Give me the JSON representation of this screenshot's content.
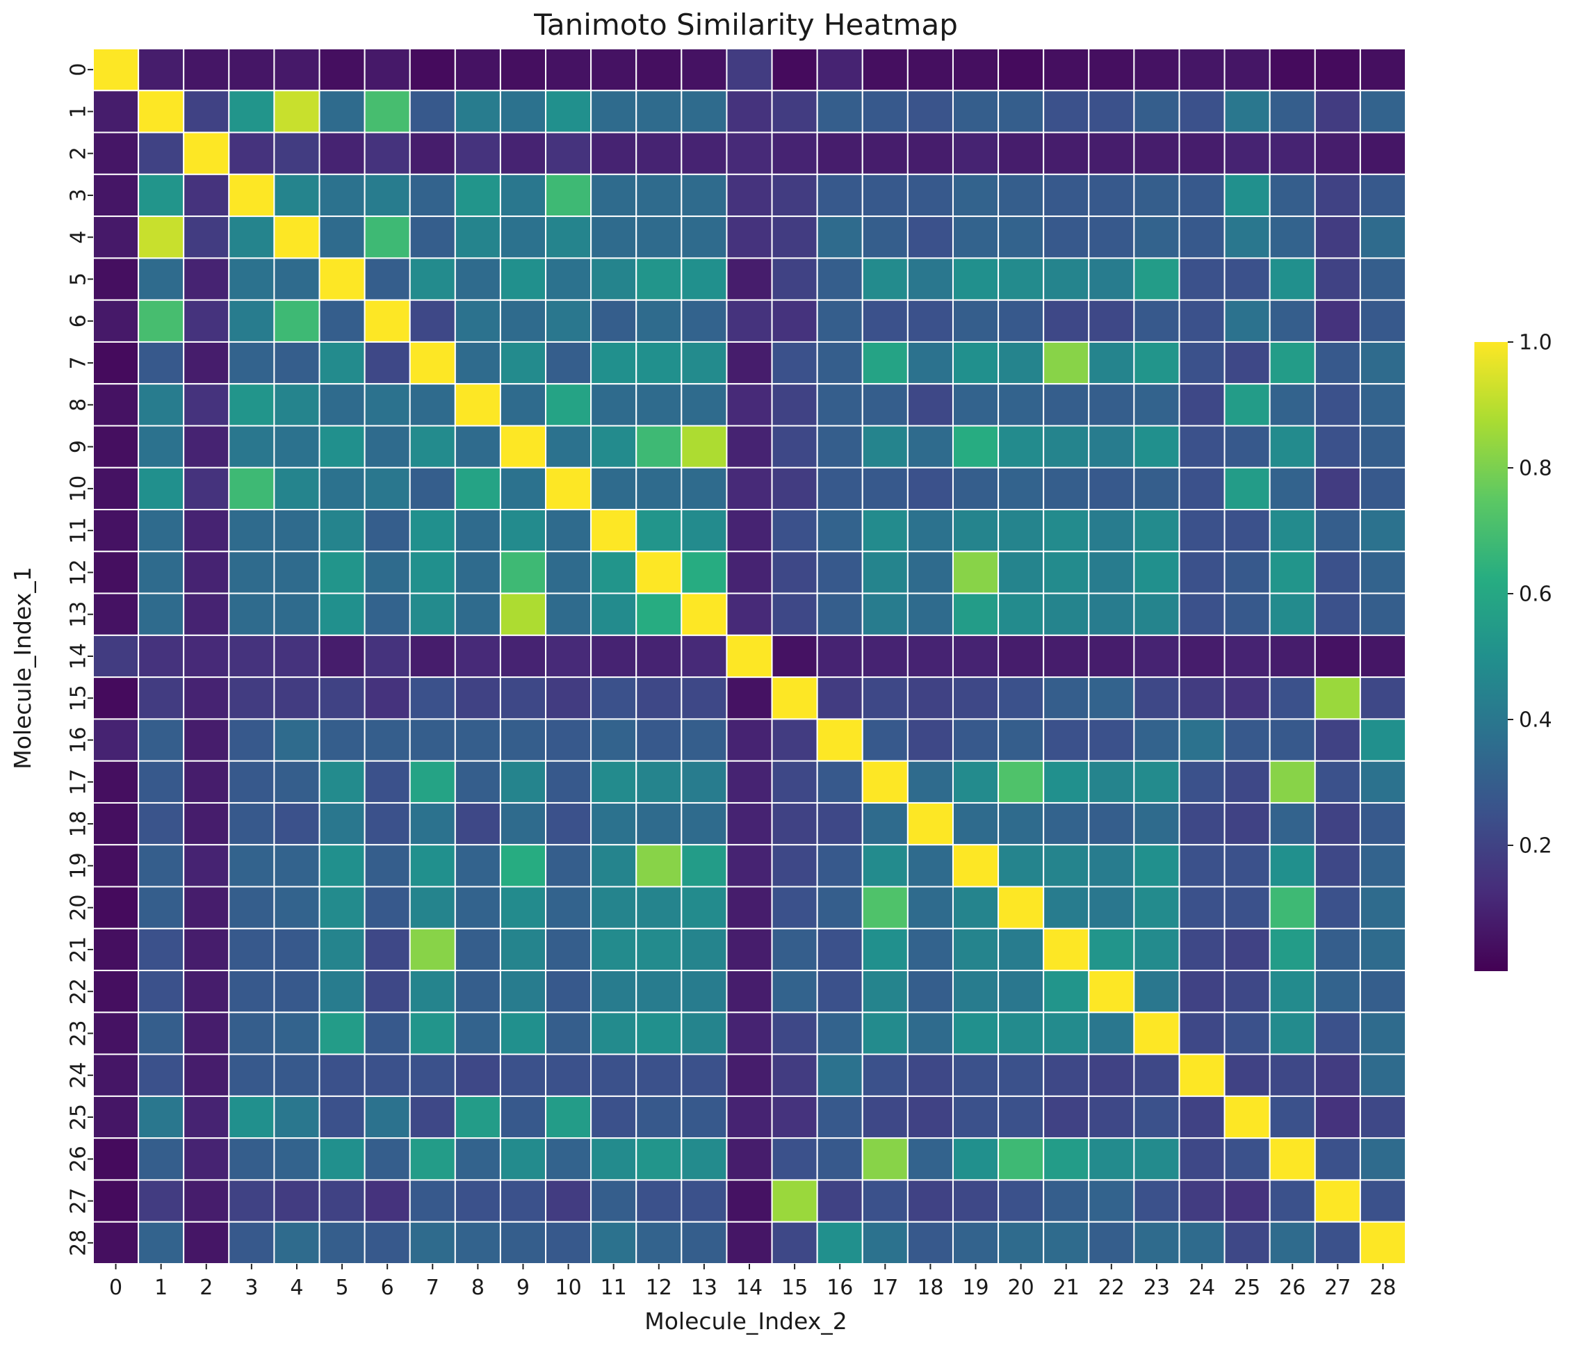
{
  "chart_data": {
    "type": "heatmap",
    "title": "Tanimoto Similarity Heatmap",
    "xlabel": "Molecule_Index_2",
    "ylabel": "Molecule_Index_1",
    "x_categories": [
      "0",
      "1",
      "2",
      "3",
      "4",
      "5",
      "6",
      "7",
      "8",
      "9",
      "10",
      "11",
      "12",
      "13",
      "14",
      "15",
      "16",
      "17",
      "18",
      "19",
      "20",
      "21",
      "22",
      "23",
      "24",
      "25",
      "26",
      "27",
      "28"
    ],
    "y_categories": [
      "0",
      "1",
      "2",
      "3",
      "4",
      "5",
      "6",
      "7",
      "8",
      "9",
      "10",
      "11",
      "12",
      "13",
      "14",
      "15",
      "16",
      "17",
      "18",
      "19",
      "20",
      "21",
      "22",
      "23",
      "24",
      "25",
      "26",
      "27",
      "28"
    ],
    "colormap": "viridis",
    "colorbar": {
      "range": [
        0.0,
        1.0
      ],
      "ticks": [
        "0.2",
        "0.4",
        "0.6",
        "0.8",
        "1.0"
      ],
      "tick_values": [
        0.2,
        0.4,
        0.6,
        0.8,
        1.0
      ]
    },
    "grid_line_color": "#ffffff",
    "values": [
      [
        1.0,
        0.08,
        0.06,
        0.06,
        0.07,
        0.04,
        0.07,
        0.03,
        0.05,
        0.04,
        0.05,
        0.05,
        0.04,
        0.05,
        0.18,
        0.03,
        0.1,
        0.04,
        0.04,
        0.04,
        0.03,
        0.04,
        0.04,
        0.05,
        0.06,
        0.06,
        0.03,
        0.03,
        0.04
      ],
      [
        0.08,
        1.0,
        0.2,
        0.52,
        0.92,
        0.35,
        0.7,
        0.28,
        0.42,
        0.38,
        0.5,
        0.35,
        0.35,
        0.35,
        0.15,
        0.18,
        0.3,
        0.28,
        0.26,
        0.3,
        0.3,
        0.25,
        0.25,
        0.3,
        0.25,
        0.4,
        0.3,
        0.18,
        0.32
      ],
      [
        0.06,
        0.2,
        1.0,
        0.15,
        0.18,
        0.1,
        0.15,
        0.08,
        0.15,
        0.1,
        0.15,
        0.1,
        0.1,
        0.1,
        0.12,
        0.1,
        0.08,
        0.08,
        0.08,
        0.1,
        0.08,
        0.08,
        0.08,
        0.08,
        0.08,
        0.1,
        0.1,
        0.08,
        0.06
      ],
      [
        0.06,
        0.52,
        0.15,
        1.0,
        0.45,
        0.38,
        0.42,
        0.32,
        0.52,
        0.4,
        0.68,
        0.35,
        0.35,
        0.35,
        0.15,
        0.18,
        0.28,
        0.28,
        0.28,
        0.32,
        0.3,
        0.28,
        0.28,
        0.3,
        0.28,
        0.5,
        0.3,
        0.2,
        0.28
      ],
      [
        0.07,
        0.92,
        0.18,
        0.45,
        1.0,
        0.35,
        0.68,
        0.3,
        0.45,
        0.38,
        0.45,
        0.35,
        0.35,
        0.35,
        0.15,
        0.18,
        0.35,
        0.3,
        0.25,
        0.32,
        0.32,
        0.28,
        0.28,
        0.32,
        0.28,
        0.4,
        0.32,
        0.18,
        0.35
      ],
      [
        0.04,
        0.35,
        0.1,
        0.38,
        0.35,
        1.0,
        0.3,
        0.48,
        0.35,
        0.5,
        0.38,
        0.45,
        0.52,
        0.5,
        0.08,
        0.2,
        0.3,
        0.48,
        0.4,
        0.5,
        0.48,
        0.45,
        0.42,
        0.55,
        0.25,
        0.25,
        0.5,
        0.2,
        0.3
      ],
      [
        0.07,
        0.7,
        0.15,
        0.42,
        0.68,
        0.3,
        1.0,
        0.22,
        0.38,
        0.35,
        0.4,
        0.3,
        0.35,
        0.32,
        0.15,
        0.15,
        0.3,
        0.25,
        0.25,
        0.3,
        0.28,
        0.22,
        0.22,
        0.28,
        0.25,
        0.38,
        0.3,
        0.15,
        0.28
      ],
      [
        0.03,
        0.28,
        0.08,
        0.32,
        0.3,
        0.48,
        0.22,
        1.0,
        0.35,
        0.48,
        0.3,
        0.5,
        0.5,
        0.48,
        0.08,
        0.25,
        0.3,
        0.58,
        0.38,
        0.5,
        0.45,
        0.82,
        0.45,
        0.52,
        0.25,
        0.22,
        0.55,
        0.28,
        0.35
      ],
      [
        0.05,
        0.42,
        0.15,
        0.52,
        0.45,
        0.35,
        0.38,
        0.35,
        1.0,
        0.35,
        0.58,
        0.35,
        0.35,
        0.35,
        0.12,
        0.2,
        0.3,
        0.3,
        0.22,
        0.32,
        0.32,
        0.3,
        0.3,
        0.32,
        0.22,
        0.55,
        0.32,
        0.25,
        0.32
      ],
      [
        0.04,
        0.38,
        0.1,
        0.4,
        0.38,
        0.5,
        0.35,
        0.48,
        0.35,
        1.0,
        0.38,
        0.48,
        0.68,
        0.88,
        0.1,
        0.22,
        0.3,
        0.45,
        0.35,
        0.62,
        0.48,
        0.45,
        0.42,
        0.5,
        0.25,
        0.28,
        0.48,
        0.25,
        0.3
      ],
      [
        0.05,
        0.5,
        0.15,
        0.68,
        0.45,
        0.38,
        0.4,
        0.3,
        0.58,
        0.38,
        1.0,
        0.35,
        0.35,
        0.35,
        0.12,
        0.18,
        0.28,
        0.28,
        0.25,
        0.3,
        0.32,
        0.3,
        0.28,
        0.3,
        0.25,
        0.55,
        0.32,
        0.18,
        0.28
      ],
      [
        0.05,
        0.35,
        0.1,
        0.35,
        0.35,
        0.45,
        0.3,
        0.5,
        0.35,
        0.48,
        0.35,
        1.0,
        0.52,
        0.48,
        0.1,
        0.25,
        0.32,
        0.48,
        0.38,
        0.45,
        0.45,
        0.48,
        0.42,
        0.48,
        0.25,
        0.25,
        0.48,
        0.3,
        0.38
      ],
      [
        0.04,
        0.35,
        0.1,
        0.35,
        0.35,
        0.52,
        0.35,
        0.5,
        0.35,
        0.68,
        0.35,
        0.52,
        1.0,
        0.62,
        0.1,
        0.22,
        0.28,
        0.45,
        0.35,
        0.82,
        0.45,
        0.48,
        0.42,
        0.5,
        0.25,
        0.28,
        0.52,
        0.25,
        0.32
      ],
      [
        0.05,
        0.35,
        0.1,
        0.35,
        0.35,
        0.5,
        0.32,
        0.48,
        0.35,
        0.88,
        0.35,
        0.48,
        0.62,
        1.0,
        0.12,
        0.22,
        0.3,
        0.42,
        0.35,
        0.55,
        0.48,
        0.45,
        0.42,
        0.45,
        0.25,
        0.28,
        0.48,
        0.25,
        0.3
      ],
      [
        0.18,
        0.15,
        0.12,
        0.15,
        0.15,
        0.08,
        0.15,
        0.08,
        0.12,
        0.1,
        0.12,
        0.1,
        0.1,
        0.12,
        1.0,
        0.05,
        0.1,
        0.1,
        0.1,
        0.1,
        0.08,
        0.08,
        0.08,
        0.1,
        0.08,
        0.1,
        0.08,
        0.05,
        0.06
      ],
      [
        0.03,
        0.18,
        0.1,
        0.18,
        0.18,
        0.2,
        0.15,
        0.25,
        0.2,
        0.22,
        0.18,
        0.25,
        0.22,
        0.22,
        0.05,
        1.0,
        0.18,
        0.22,
        0.2,
        0.22,
        0.25,
        0.3,
        0.32,
        0.22,
        0.18,
        0.15,
        0.25,
        0.85,
        0.22
      ],
      [
        0.1,
        0.3,
        0.08,
        0.28,
        0.35,
        0.3,
        0.3,
        0.3,
        0.3,
        0.3,
        0.28,
        0.32,
        0.28,
        0.3,
        0.1,
        0.18,
        1.0,
        0.28,
        0.22,
        0.28,
        0.3,
        0.25,
        0.25,
        0.32,
        0.38,
        0.28,
        0.28,
        0.2,
        0.5
      ],
      [
        0.04,
        0.28,
        0.08,
        0.28,
        0.3,
        0.48,
        0.25,
        0.58,
        0.3,
        0.45,
        0.28,
        0.48,
        0.45,
        0.42,
        0.1,
        0.22,
        0.28,
        1.0,
        0.35,
        0.48,
        0.72,
        0.5,
        0.45,
        0.48,
        0.25,
        0.22,
        0.82,
        0.25,
        0.38
      ],
      [
        0.04,
        0.26,
        0.08,
        0.28,
        0.25,
        0.4,
        0.25,
        0.38,
        0.22,
        0.35,
        0.25,
        0.38,
        0.35,
        0.35,
        0.1,
        0.2,
        0.22,
        0.35,
        1.0,
        0.35,
        0.35,
        0.32,
        0.3,
        0.35,
        0.22,
        0.2,
        0.32,
        0.2,
        0.28
      ],
      [
        0.04,
        0.3,
        0.1,
        0.32,
        0.32,
        0.5,
        0.3,
        0.5,
        0.32,
        0.62,
        0.3,
        0.45,
        0.82,
        0.55,
        0.1,
        0.22,
        0.28,
        0.48,
        0.35,
        1.0,
        0.45,
        0.45,
        0.42,
        0.5,
        0.25,
        0.25,
        0.5,
        0.22,
        0.32
      ],
      [
        0.03,
        0.3,
        0.08,
        0.3,
        0.32,
        0.48,
        0.28,
        0.45,
        0.32,
        0.48,
        0.32,
        0.45,
        0.45,
        0.48,
        0.08,
        0.25,
        0.3,
        0.72,
        0.35,
        0.45,
        1.0,
        0.42,
        0.4,
        0.48,
        0.25,
        0.25,
        0.68,
        0.25,
        0.35
      ],
      [
        0.04,
        0.25,
        0.08,
        0.28,
        0.28,
        0.45,
        0.22,
        0.82,
        0.3,
        0.45,
        0.3,
        0.48,
        0.48,
        0.45,
        0.08,
        0.3,
        0.25,
        0.5,
        0.32,
        0.45,
        0.42,
        1.0,
        0.52,
        0.48,
        0.22,
        0.2,
        0.55,
        0.3,
        0.35
      ],
      [
        0.04,
        0.25,
        0.08,
        0.28,
        0.28,
        0.42,
        0.22,
        0.45,
        0.3,
        0.42,
        0.28,
        0.42,
        0.42,
        0.42,
        0.08,
        0.32,
        0.25,
        0.45,
        0.3,
        0.42,
        0.4,
        0.52,
        1.0,
        0.4,
        0.2,
        0.22,
        0.48,
        0.32,
        0.3
      ],
      [
        0.05,
        0.3,
        0.08,
        0.3,
        0.32,
        0.55,
        0.28,
        0.52,
        0.32,
        0.5,
        0.3,
        0.48,
        0.5,
        0.45,
        0.1,
        0.22,
        0.32,
        0.48,
        0.35,
        0.5,
        0.48,
        0.48,
        0.4,
        1.0,
        0.22,
        0.25,
        0.48,
        0.25,
        0.35
      ],
      [
        0.06,
        0.25,
        0.08,
        0.28,
        0.28,
        0.25,
        0.25,
        0.25,
        0.22,
        0.25,
        0.25,
        0.25,
        0.25,
        0.25,
        0.08,
        0.18,
        0.38,
        0.25,
        0.22,
        0.25,
        0.25,
        0.22,
        0.2,
        0.22,
        1.0,
        0.2,
        0.22,
        0.18,
        0.35
      ],
      [
        0.06,
        0.4,
        0.1,
        0.5,
        0.4,
        0.25,
        0.38,
        0.22,
        0.55,
        0.28,
        0.55,
        0.25,
        0.28,
        0.28,
        0.1,
        0.15,
        0.28,
        0.22,
        0.2,
        0.25,
        0.25,
        0.2,
        0.22,
        0.25,
        0.2,
        1.0,
        0.25,
        0.15,
        0.22
      ],
      [
        0.03,
        0.3,
        0.1,
        0.3,
        0.32,
        0.5,
        0.3,
        0.55,
        0.32,
        0.48,
        0.32,
        0.48,
        0.52,
        0.48,
        0.08,
        0.25,
        0.28,
        0.82,
        0.32,
        0.5,
        0.68,
        0.55,
        0.48,
        0.48,
        0.22,
        0.25,
        1.0,
        0.25,
        0.35
      ],
      [
        0.03,
        0.18,
        0.08,
        0.2,
        0.18,
        0.2,
        0.15,
        0.28,
        0.25,
        0.25,
        0.18,
        0.3,
        0.25,
        0.25,
        0.05,
        0.85,
        0.2,
        0.25,
        0.2,
        0.22,
        0.25,
        0.3,
        0.32,
        0.25,
        0.18,
        0.15,
        0.25,
        1.0,
        0.25
      ],
      [
        0.04,
        0.32,
        0.06,
        0.28,
        0.35,
        0.3,
        0.28,
        0.35,
        0.32,
        0.3,
        0.28,
        0.38,
        0.32,
        0.3,
        0.06,
        0.22,
        0.5,
        0.38,
        0.28,
        0.32,
        0.35,
        0.35,
        0.3,
        0.35,
        0.35,
        0.22,
        0.35,
        0.25,
        1.0
      ]
    ]
  }
}
